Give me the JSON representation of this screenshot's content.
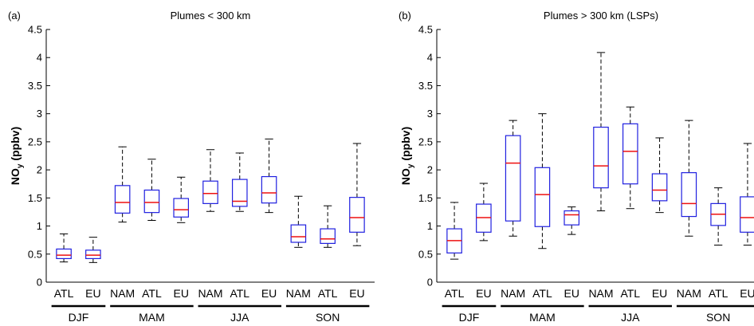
{
  "chart_data": [
    {
      "type": "box",
      "panel_label": "(a)",
      "title": "Plumes < 300 km",
      "ylabel_main": "NO",
      "ylabel_sub": "y",
      "ylabel_unit": " (ppbv)",
      "ylim": [
        0,
        4.5
      ],
      "yticks": [
        "0",
        "0.5",
        "1",
        "1.5",
        "2",
        "2.5",
        "3",
        "3.5",
        "4",
        "4.5"
      ],
      "categories": [
        "ATL",
        "EU",
        "NAM",
        "ATL",
        "EU",
        "NAM",
        "ATL",
        "EU",
        "NAM",
        "ATL",
        "EU"
      ],
      "groups": [
        {
          "label": "DJF",
          "from": 0,
          "to": 1
        },
        {
          "label": "MAM",
          "from": 2,
          "to": 4
        },
        {
          "label": "JJA",
          "from": 5,
          "to": 7
        },
        {
          "label": "SON",
          "from": 8,
          "to": 10
        }
      ],
      "boxes": [
        {
          "min": 0.36,
          "q1": 0.42,
          "median": 0.48,
          "q3": 0.59,
          "max": 0.86
        },
        {
          "min": 0.35,
          "q1": 0.42,
          "median": 0.48,
          "q3": 0.57,
          "max": 0.8
        },
        {
          "min": 1.07,
          "q1": 1.23,
          "median": 1.42,
          "q3": 1.72,
          "max": 2.41
        },
        {
          "min": 1.1,
          "q1": 1.24,
          "median": 1.42,
          "q3": 1.64,
          "max": 2.19
        },
        {
          "min": 1.06,
          "q1": 1.16,
          "median": 1.29,
          "q3": 1.49,
          "max": 1.87
        },
        {
          "min": 1.26,
          "q1": 1.4,
          "median": 1.58,
          "q3": 1.8,
          "max": 2.36
        },
        {
          "min": 1.26,
          "q1": 1.35,
          "median": 1.44,
          "q3": 1.83,
          "max": 2.3
        },
        {
          "min": 1.24,
          "q1": 1.41,
          "median": 1.59,
          "q3": 1.88,
          "max": 2.55
        },
        {
          "min": 0.62,
          "q1": 0.71,
          "median": 0.81,
          "q3": 1.02,
          "max": 1.53
        },
        {
          "min": 0.62,
          "q1": 0.69,
          "median": 0.77,
          "q3": 0.95,
          "max": 1.36
        },
        {
          "min": 0.65,
          "q1": 0.89,
          "median": 1.15,
          "q3": 1.51,
          "max": 2.47
        }
      ]
    },
    {
      "type": "box",
      "panel_label": "(b)",
      "title": "Plumes > 300 km (LSPs)",
      "ylabel_main": "NO",
      "ylabel_sub": "y",
      "ylabel_unit": " (ppbv)",
      "ylim": [
        0,
        4.5
      ],
      "yticks": [
        "0",
        "0.5",
        "1",
        "1.5",
        "2",
        "2.5",
        "3",
        "3.5",
        "4",
        "4.5"
      ],
      "categories": [
        "ATL",
        "EU",
        "NAM",
        "ATL",
        "EU",
        "NAM",
        "ATL",
        "EU",
        "NAM",
        "ATL",
        "EU"
      ],
      "groups": [
        {
          "label": "DJF",
          "from": 0,
          "to": 1
        },
        {
          "label": "MAM",
          "from": 2,
          "to": 4
        },
        {
          "label": "JJA",
          "from": 5,
          "to": 7
        },
        {
          "label": "SON",
          "from": 8,
          "to": 10
        }
      ],
      "boxes": [
        {
          "min": 0.41,
          "q1": 0.52,
          "median": 0.74,
          "q3": 0.95,
          "max": 1.42
        },
        {
          "min": 0.74,
          "q1": 0.89,
          "median": 1.15,
          "q3": 1.39,
          "max": 1.76
        },
        {
          "min": 0.82,
          "q1": 1.09,
          "median": 2.12,
          "q3": 2.61,
          "max": 2.88
        },
        {
          "min": 0.6,
          "q1": 0.99,
          "median": 1.56,
          "q3": 2.04,
          "max": 3.0
        },
        {
          "min": 0.85,
          "q1": 1.02,
          "median": 1.2,
          "q3": 1.27,
          "max": 1.34
        },
        {
          "min": 1.27,
          "q1": 1.68,
          "median": 2.07,
          "q3": 2.76,
          "max": 4.09
        },
        {
          "min": 1.31,
          "q1": 1.75,
          "median": 2.33,
          "q3": 2.82,
          "max": 3.12
        },
        {
          "min": 1.24,
          "q1": 1.45,
          "median": 1.64,
          "q3": 1.93,
          "max": 2.57
        },
        {
          "min": 0.82,
          "q1": 1.17,
          "median": 1.4,
          "q3": 1.95,
          "max": 2.88
        },
        {
          "min": 0.66,
          "q1": 1.01,
          "median": 1.21,
          "q3": 1.4,
          "max": 1.68
        },
        {
          "min": 0.66,
          "q1": 0.89,
          "median": 1.15,
          "q3": 1.52,
          "max": 2.47
        }
      ]
    }
  ],
  "colors": {
    "box": "#2020e0",
    "median": "#ee1111",
    "whisker": "#000000",
    "axis": "#000000"
  }
}
